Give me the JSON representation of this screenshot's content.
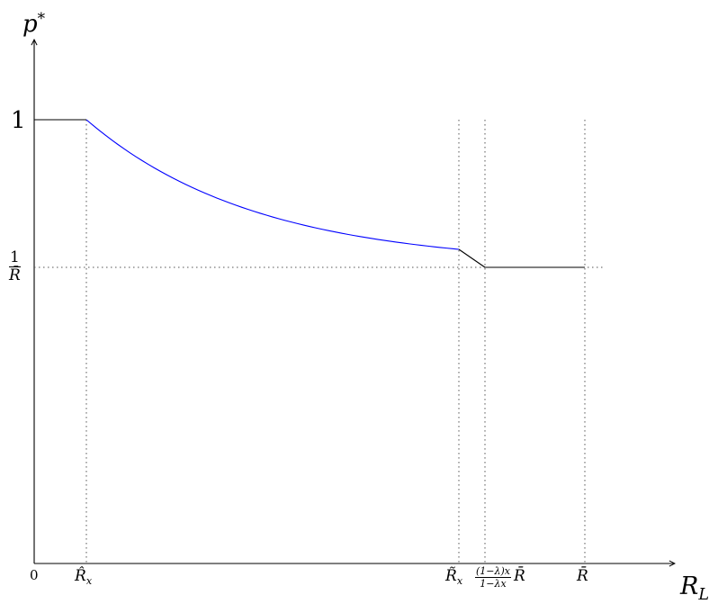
{
  "axes": {
    "y_label_base": "p",
    "y_label_sup": "*",
    "x_label_base": "R",
    "x_label_sub": "L",
    "origin_label": "0"
  },
  "y_ticks": {
    "one": "1",
    "frac_num": "1",
    "frac_den": "R̄"
  },
  "x_ticks": {
    "r_hat_base": "R̂",
    "r_hat_sub": "x",
    "r_tilde_base": "R̃",
    "r_tilde_sub": "x",
    "mid_num": "(1−λ)x",
    "mid_den": "1−λx",
    "mid_suffix": "R̄",
    "r_bar": "R̄"
  },
  "colors": {
    "flat_segments": "#000000",
    "decreasing_segment": "#0000ff",
    "guides": "#555555"
  },
  "chart_data": {
    "type": "line",
    "description_of_curve": "piecewise: constant at 1, decreasing (blue), short black decline, constant at 1/R̄",
    "y_levels": [
      "1",
      "1/R̄"
    ],
    "x_breakpoints": [
      "R̂x",
      "R̃x",
      "(1−λ)x/(1−λx) R̄",
      "R̄"
    ]
  }
}
